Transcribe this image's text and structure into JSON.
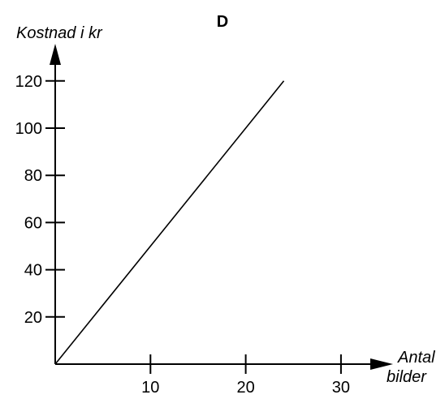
{
  "chart_data": {
    "type": "line",
    "title": "D",
    "ylabel": "Kostnad i kr",
    "xlabel_lines": [
      "Antal",
      "bilder"
    ],
    "xlim": [
      0,
      34
    ],
    "ylim": [
      0,
      128
    ],
    "x_ticks": [
      10,
      20,
      30
    ],
    "y_ticks": [
      20,
      40,
      60,
      80,
      100,
      120
    ],
    "grid": false,
    "series": [
      {
        "x": [
          0,
          24
        ],
        "y": [
          0,
          120
        ]
      }
    ],
    "colors": {
      "axis": "#000000",
      "line": "#000000"
    }
  }
}
